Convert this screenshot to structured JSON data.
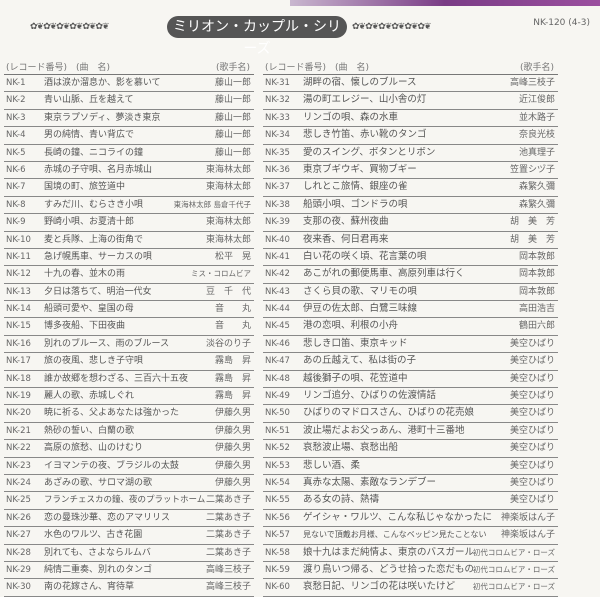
{
  "header": {
    "catalog_code": "NK-120 (4-3)",
    "title": "ミリオン・カップル・シリーズ",
    "flourish": "✿❦✿❦✿❦✿❦✿❦✿❦"
  },
  "columns": {
    "record_no": "(レコード番号)",
    "song": "(曲　名)",
    "artist": "(歌手名)"
  },
  "left": [
    {
      "no": "NK-1",
      "song": "酒は涙か溜息か、影を慕いて",
      "artist": "藤山一郎"
    },
    {
      "no": "NK-2",
      "song": "青い山脈、丘を越えて",
      "artist": "藤山一郎"
    },
    {
      "no": "NK-3",
      "song": "東京ラプソディ、夢淡き東京",
      "artist": "藤山一郎"
    },
    {
      "no": "NK-4",
      "song": "男の純情、青い背広で",
      "artist": "藤山一郎"
    },
    {
      "no": "NK-5",
      "song": "長崎の鐘、ニコライの鐘",
      "artist": "藤山一郎"
    },
    {
      "no": "NK-6",
      "song": "赤城の子守唄、名月赤城山",
      "artist": "東海林太郎"
    },
    {
      "no": "NK-7",
      "song": "国境の町、旅笠道中",
      "artist": "東海林太郎"
    },
    {
      "no": "NK-8",
      "song": "すみだ川、むらさき小唄",
      "artist": "東海林太郎 島倉千代子"
    },
    {
      "no": "NK-9",
      "song": "野崎小唄、お夏清十郎",
      "artist": "東海林太郎"
    },
    {
      "no": "NK-10",
      "song": "麦と兵隊、上海の街角で",
      "artist": "東海林太郎"
    },
    {
      "no": "NK-11",
      "song": "急げ幌馬車、サーカスの唄",
      "artist": "松平　晃"
    },
    {
      "no": "NK-12",
      "song": "十九の春、並木の雨",
      "artist": "ミス・コロムビア"
    },
    {
      "no": "NK-13",
      "song": "夕日は落ちて、明治一代女",
      "artist": "豆　千　代"
    },
    {
      "no": "NK-14",
      "song": "船頭可愛や、皇国の母",
      "artist": "音　　丸"
    },
    {
      "no": "NK-15",
      "song": "博多夜船、下田夜曲",
      "artist": "音　　丸"
    },
    {
      "no": "NK-16",
      "song": "別れのブルース、雨のブルース",
      "artist": "淡谷のり子"
    },
    {
      "no": "NK-17",
      "song": "旅の夜風、悲しき子守唄",
      "artist": "霧島　昇"
    },
    {
      "no": "NK-18",
      "song": "誰か故郷を想わざる、三百六十五夜",
      "artist": "霧島　昇"
    },
    {
      "no": "NK-19",
      "song": "麗人の歌、赤城しぐれ",
      "artist": "霧島　昇"
    },
    {
      "no": "NK-20",
      "song": "暁に祈る、父よあなたは強かった",
      "artist": "伊藤久男"
    },
    {
      "no": "NK-21",
      "song": "熱砂の誓い、白蘭の歌",
      "artist": "伊藤久男"
    },
    {
      "no": "NK-22",
      "song": "高原の旅愁、山のけむり",
      "artist": "伊藤久男"
    },
    {
      "no": "NK-23",
      "song": "イヨマンテの夜、ブラジルの太鼓",
      "artist": "伊藤久男"
    },
    {
      "no": "NK-24",
      "song": "あざみの歌、サロマ湖の歌",
      "artist": "伊藤久男"
    },
    {
      "no": "NK-25",
      "song": "フランチェスカの鐘、夜のプラットホーム",
      "artist": "二葉あき子"
    },
    {
      "no": "NK-26",
      "song": "恋の曼珠沙華、恋のアマリリス",
      "artist": "二葉あき子"
    },
    {
      "no": "NK-27",
      "song": "水色のワルツ、古き花園",
      "artist": "二葉あき子"
    },
    {
      "no": "NK-28",
      "song": "別れても、さよならルムバ",
      "artist": "二葉あき子"
    },
    {
      "no": "NK-29",
      "song": "純情二重奏、別れのタンゴ",
      "artist": "高峰三枝子"
    },
    {
      "no": "NK-30",
      "song": "南の花嫁さん、宵待草",
      "artist": "高峰三枝子"
    }
  ],
  "right": [
    {
      "no": "NK-31",
      "song": "湖畔の宿、懐しのブルース",
      "artist": "高峰三枝子"
    },
    {
      "no": "NK-32",
      "song": "湯の町エレジー、山小舎の灯",
      "artist": "近江俊郎"
    },
    {
      "no": "NK-33",
      "song": "リンゴの唄、森の水車",
      "artist": "並木路子"
    },
    {
      "no": "NK-34",
      "song": "悲しき竹笛、赤い靴のタンゴ",
      "artist": "奈良光枝"
    },
    {
      "no": "NK-35",
      "song": "愛のスイング、ボタンとリボン",
      "artist": "池真理子"
    },
    {
      "no": "NK-36",
      "song": "東京ブギウギ、買物ブギー",
      "artist": "笠置シヅ子"
    },
    {
      "no": "NK-37",
      "song": "しれとこ旅情、銀座の雀",
      "artist": "森繁久彌"
    },
    {
      "no": "NK-38",
      "song": "船頭小唄、ゴンドラの唄",
      "artist": "森繁久彌"
    },
    {
      "no": "NK-39",
      "song": "支那の夜、蘇州夜曲",
      "artist": "胡　美　芳"
    },
    {
      "no": "NK-40",
      "song": "夜来香、何日君再来",
      "artist": "胡　美　芳"
    },
    {
      "no": "NK-41",
      "song": "白い花の咲く頃、花言葉の唄",
      "artist": "岡本敦郎"
    },
    {
      "no": "NK-42",
      "song": "あこがれの郵便馬車、高原列車は行く",
      "artist": "岡本敦郎"
    },
    {
      "no": "NK-43",
      "song": "さくら貝の歌、マリモの唄",
      "artist": "岡本敦郎"
    },
    {
      "no": "NK-44",
      "song": "伊豆の佐太郎、白鷺三味線",
      "artist": "高田浩吉"
    },
    {
      "no": "NK-45",
      "song": "港の恋唄、利根の小舟",
      "artist": "鶴田六郎"
    },
    {
      "no": "NK-46",
      "song": "悲しき口笛、東京キッド",
      "artist": "美空ひばり"
    },
    {
      "no": "NK-47",
      "song": "あの丘越えて、私は街の子",
      "artist": "美空ひばり"
    },
    {
      "no": "NK-48",
      "song": "越後獅子の唄、花笠道中",
      "artist": "美空ひばり"
    },
    {
      "no": "NK-49",
      "song": "リンゴ追分、ひばりの佐渡情話",
      "artist": "美空ひばり"
    },
    {
      "no": "NK-50",
      "song": "ひばりのマドロスさん、ひばりの花売娘",
      "artist": "美空ひばり"
    },
    {
      "no": "NK-51",
      "song": "波止場だよお父っあん、港町十三番地",
      "artist": "美空ひばり"
    },
    {
      "no": "NK-52",
      "song": "哀愁波止場、哀愁出船",
      "artist": "美空ひばり"
    },
    {
      "no": "NK-53",
      "song": "悲しい酒、柔",
      "artist": "美空ひばり"
    },
    {
      "no": "NK-54",
      "song": "真赤な太陽、素敵なランデブー",
      "artist": "美空ひばり"
    },
    {
      "no": "NK-55",
      "song": "ある女の詩、熱禱",
      "artist": "美空ひばり"
    },
    {
      "no": "NK-56",
      "song": "ゲイシャ・ワルツ、こんな私じゃなかったに",
      "artist": "神楽坂はん子"
    },
    {
      "no": "NK-57",
      "song": "見ないで頂戴お月様、こんなベッピン見たことない",
      "artist": "神楽坂はん子"
    },
    {
      "no": "NK-58",
      "song": "娘十九はまだ純情よ、東京のバスガール",
      "artist": "初代コロムビア・ローズ"
    },
    {
      "no": "NK-59",
      "song": "渡り鳥いつ帰る、どうせ拾った恋だもの",
      "artist": "初代コロムビア・ローズ"
    },
    {
      "no": "NK-60",
      "song": "哀愁日記、リンゴの花は咲いたけど",
      "artist": "初代コロムビア・ローズ"
    }
  ]
}
